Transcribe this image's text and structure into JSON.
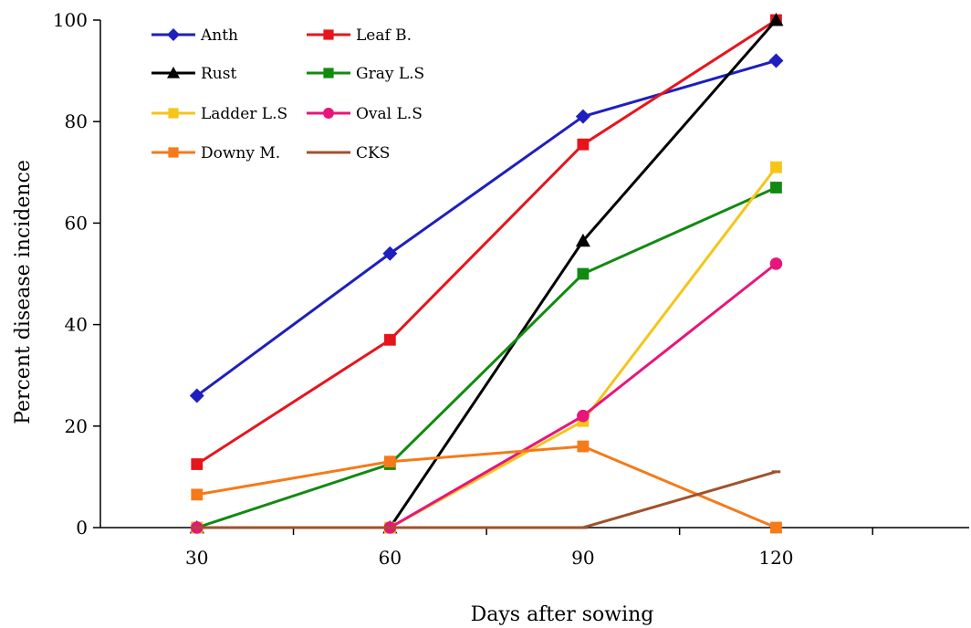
{
  "chart_data": {
    "type": "line",
    "title": "",
    "xlabel": "Days after sowing",
    "ylabel": "Percent disease incidence",
    "x": [
      30,
      60,
      90,
      120
    ],
    "xlim": [
      15,
      150
    ],
    "ylim": [
      0,
      100
    ],
    "yticks": [
      0,
      20,
      40,
      60,
      80,
      100
    ],
    "grid": false,
    "legend_position": "top-left",
    "series": [
      {
        "name": "Anth",
        "color": "#1f1fbf",
        "marker": "diamond",
        "values": [
          26,
          54,
          81,
          92
        ]
      },
      {
        "name": "Leaf B.",
        "color": "#e8141c",
        "marker": "square",
        "values": [
          12.5,
          37,
          75.5,
          100
        ]
      },
      {
        "name": "Rust",
        "color": "#000000",
        "marker": "triangle",
        "values": [
          0,
          0,
          56.5,
          100
        ]
      },
      {
        "name": "Gray L.S",
        "color": "#128a12",
        "marker": "square",
        "values": [
          0,
          12.5,
          50,
          67
        ]
      },
      {
        "name": "Ladder L.S",
        "color": "#f5c518",
        "marker": "square",
        "values": [
          0,
          0,
          21,
          71
        ]
      },
      {
        "name": "Oval L.S",
        "color": "#e8157a",
        "marker": "circle",
        "values": [
          0,
          0,
          22,
          52
        ]
      },
      {
        "name": "Downy M.",
        "color": "#f57a1a",
        "marker": "square",
        "values": [
          6.5,
          13,
          16,
          0
        ]
      },
      {
        "name": "CKS",
        "color": "#a0522d",
        "marker": "dash",
        "values": [
          0,
          0,
          0,
          11
        ]
      }
    ]
  }
}
